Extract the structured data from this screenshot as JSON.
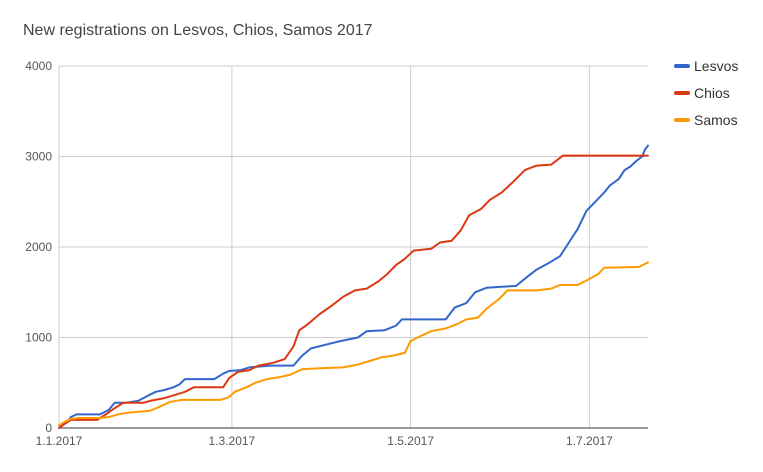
{
  "chart_data": {
    "type": "line",
    "title": "New registrations on Lesvos, Chios, Samos 2017",
    "xlabel": "",
    "ylabel": "",
    "ylim": [
      0,
      4000
    ],
    "yticks": [
      0,
      1000,
      2000,
      3000,
      4000
    ],
    "xlim": [
      "2017-01-01",
      "2017-07-21"
    ],
    "xticks": [
      {
        "date": "2017-01-01",
        "label": "1.1.2017"
      },
      {
        "date": "2017-03-01",
        "label": "1.3.2017"
      },
      {
        "date": "2017-05-01",
        "label": "1.5.2017"
      },
      {
        "date": "2017-07-01",
        "label": "1.7.2017"
      }
    ],
    "grid": true,
    "legend_position": "top-right",
    "series": [
      {
        "name": "Lesvos",
        "color": "#3366cc",
        "points": [
          [
            "2017-01-01",
            0
          ],
          [
            "2017-01-04",
            70
          ],
          [
            "2017-01-05",
            120
          ],
          [
            "2017-01-07",
            150
          ],
          [
            "2017-01-15",
            150
          ],
          [
            "2017-01-18",
            200
          ],
          [
            "2017-01-20",
            280
          ],
          [
            "2017-01-24",
            280
          ],
          [
            "2017-01-28",
            300
          ],
          [
            "2017-01-31",
            350
          ],
          [
            "2017-02-03",
            400
          ],
          [
            "2017-02-06",
            420
          ],
          [
            "2017-02-09",
            450
          ],
          [
            "2017-02-11",
            480
          ],
          [
            "2017-02-13",
            540
          ],
          [
            "2017-02-23",
            540
          ],
          [
            "2017-02-26",
            600
          ],
          [
            "2017-02-28",
            630
          ],
          [
            "2017-03-04",
            640
          ],
          [
            "2017-03-07",
            670
          ],
          [
            "2017-03-14",
            690
          ],
          [
            "2017-03-22",
            690
          ],
          [
            "2017-03-25",
            800
          ],
          [
            "2017-03-28",
            880
          ],
          [
            "2017-04-02",
            920
          ],
          [
            "2017-04-07",
            960
          ],
          [
            "2017-04-13",
            1000
          ],
          [
            "2017-04-16",
            1070
          ],
          [
            "2017-04-22",
            1080
          ],
          [
            "2017-04-26",
            1130
          ],
          [
            "2017-04-28",
            1200
          ],
          [
            "2017-05-09",
            1200
          ],
          [
            "2017-05-13",
            1200
          ],
          [
            "2017-05-16",
            1330
          ],
          [
            "2017-05-20",
            1380
          ],
          [
            "2017-05-23",
            1500
          ],
          [
            "2017-05-27",
            1550
          ],
          [
            "2017-06-01",
            1560
          ],
          [
            "2017-06-06",
            1570
          ],
          [
            "2017-06-09",
            1650
          ],
          [
            "2017-06-13",
            1750
          ],
          [
            "2017-06-17",
            1820
          ],
          [
            "2017-06-21",
            1900
          ],
          [
            "2017-06-24",
            2050
          ],
          [
            "2017-06-27",
            2200
          ],
          [
            "2017-06-30",
            2400
          ],
          [
            "2017-07-03",
            2500
          ],
          [
            "2017-07-06",
            2600
          ],
          [
            "2017-07-08",
            2680
          ],
          [
            "2017-07-11",
            2750
          ],
          [
            "2017-07-13",
            2850
          ],
          [
            "2017-07-15",
            2890
          ],
          [
            "2017-07-17",
            2950
          ],
          [
            "2017-07-19",
            3000
          ],
          [
            "2017-07-20",
            3080
          ],
          [
            "2017-07-21",
            3120
          ]
        ]
      },
      {
        "name": "Chios",
        "color": "#dc3912",
        "points": [
          [
            "2017-01-01",
            0
          ],
          [
            "2017-01-03",
            50
          ],
          [
            "2017-01-05",
            90
          ],
          [
            "2017-01-14",
            90
          ],
          [
            "2017-01-17",
            150
          ],
          [
            "2017-01-20",
            220
          ],
          [
            "2017-01-23",
            280
          ],
          [
            "2017-01-30",
            280
          ],
          [
            "2017-02-01",
            300
          ],
          [
            "2017-02-06",
            330
          ],
          [
            "2017-02-09",
            360
          ],
          [
            "2017-02-13",
            400
          ],
          [
            "2017-02-16",
            450
          ],
          [
            "2017-02-26",
            450
          ],
          [
            "2017-02-28",
            550
          ],
          [
            "2017-03-03",
            620
          ],
          [
            "2017-03-07",
            640
          ],
          [
            "2017-03-10",
            690
          ],
          [
            "2017-03-15",
            720
          ],
          [
            "2017-03-19",
            760
          ],
          [
            "2017-03-22",
            900
          ],
          [
            "2017-03-24",
            1080
          ],
          [
            "2017-03-27",
            1150
          ],
          [
            "2017-03-31",
            1260
          ],
          [
            "2017-04-04",
            1350
          ],
          [
            "2017-04-08",
            1450
          ],
          [
            "2017-04-12",
            1520
          ],
          [
            "2017-04-16",
            1540
          ],
          [
            "2017-04-20",
            1620
          ],
          [
            "2017-04-23",
            1700
          ],
          [
            "2017-04-26",
            1800
          ],
          [
            "2017-04-29",
            1870
          ],
          [
            "2017-05-02",
            1960
          ],
          [
            "2017-05-08",
            1980
          ],
          [
            "2017-05-11",
            2050
          ],
          [
            "2017-05-15",
            2070
          ],
          [
            "2017-05-18",
            2180
          ],
          [
            "2017-05-21",
            2350
          ],
          [
            "2017-05-25",
            2420
          ],
          [
            "2017-05-28",
            2520
          ],
          [
            "2017-06-01",
            2600
          ],
          [
            "2017-06-05",
            2720
          ],
          [
            "2017-06-09",
            2850
          ],
          [
            "2017-06-13",
            2900
          ],
          [
            "2017-06-18",
            2910
          ],
          [
            "2017-06-22",
            3010
          ],
          [
            "2017-07-21",
            3010
          ]
        ]
      },
      {
        "name": "Samos",
        "color": "#ff9900",
        "points": [
          [
            "2017-01-01",
            30
          ],
          [
            "2017-01-03",
            70
          ],
          [
            "2017-01-05",
            100
          ],
          [
            "2017-01-08",
            110
          ],
          [
            "2017-01-15",
            110
          ],
          [
            "2017-01-18",
            120
          ],
          [
            "2017-01-21",
            150
          ],
          [
            "2017-01-25",
            170
          ],
          [
            "2017-02-01",
            190
          ],
          [
            "2017-02-04",
            230
          ],
          [
            "2017-02-08",
            290
          ],
          [
            "2017-02-12",
            310
          ],
          [
            "2017-02-25",
            310
          ],
          [
            "2017-02-28",
            340
          ],
          [
            "2017-03-02",
            400
          ],
          [
            "2017-03-06",
            450
          ],
          [
            "2017-03-09",
            500
          ],
          [
            "2017-03-13",
            540
          ],
          [
            "2017-03-17",
            560
          ],
          [
            "2017-03-21",
            590
          ],
          [
            "2017-03-25",
            650
          ],
          [
            "2017-03-31",
            660
          ],
          [
            "2017-04-08",
            670
          ],
          [
            "2017-04-13",
            700
          ],
          [
            "2017-04-17",
            740
          ],
          [
            "2017-04-21",
            780
          ],
          [
            "2017-04-25",
            800
          ],
          [
            "2017-04-29",
            830
          ],
          [
            "2017-05-01",
            960
          ],
          [
            "2017-05-04",
            1010
          ],
          [
            "2017-05-08",
            1070
          ],
          [
            "2017-05-13",
            1100
          ],
          [
            "2017-05-17",
            1150
          ],
          [
            "2017-05-20",
            1200
          ],
          [
            "2017-05-24",
            1220
          ],
          [
            "2017-05-27",
            1320
          ],
          [
            "2017-05-31",
            1420
          ],
          [
            "2017-06-03",
            1520
          ],
          [
            "2017-06-13",
            1520
          ],
          [
            "2017-06-18",
            1540
          ],
          [
            "2017-06-21",
            1580
          ],
          [
            "2017-06-27",
            1580
          ],
          [
            "2017-06-30",
            1630
          ],
          [
            "2017-07-04",
            1700
          ],
          [
            "2017-07-06",
            1770
          ],
          [
            "2017-07-18",
            1780
          ],
          [
            "2017-07-21",
            1830
          ]
        ]
      }
    ]
  }
}
